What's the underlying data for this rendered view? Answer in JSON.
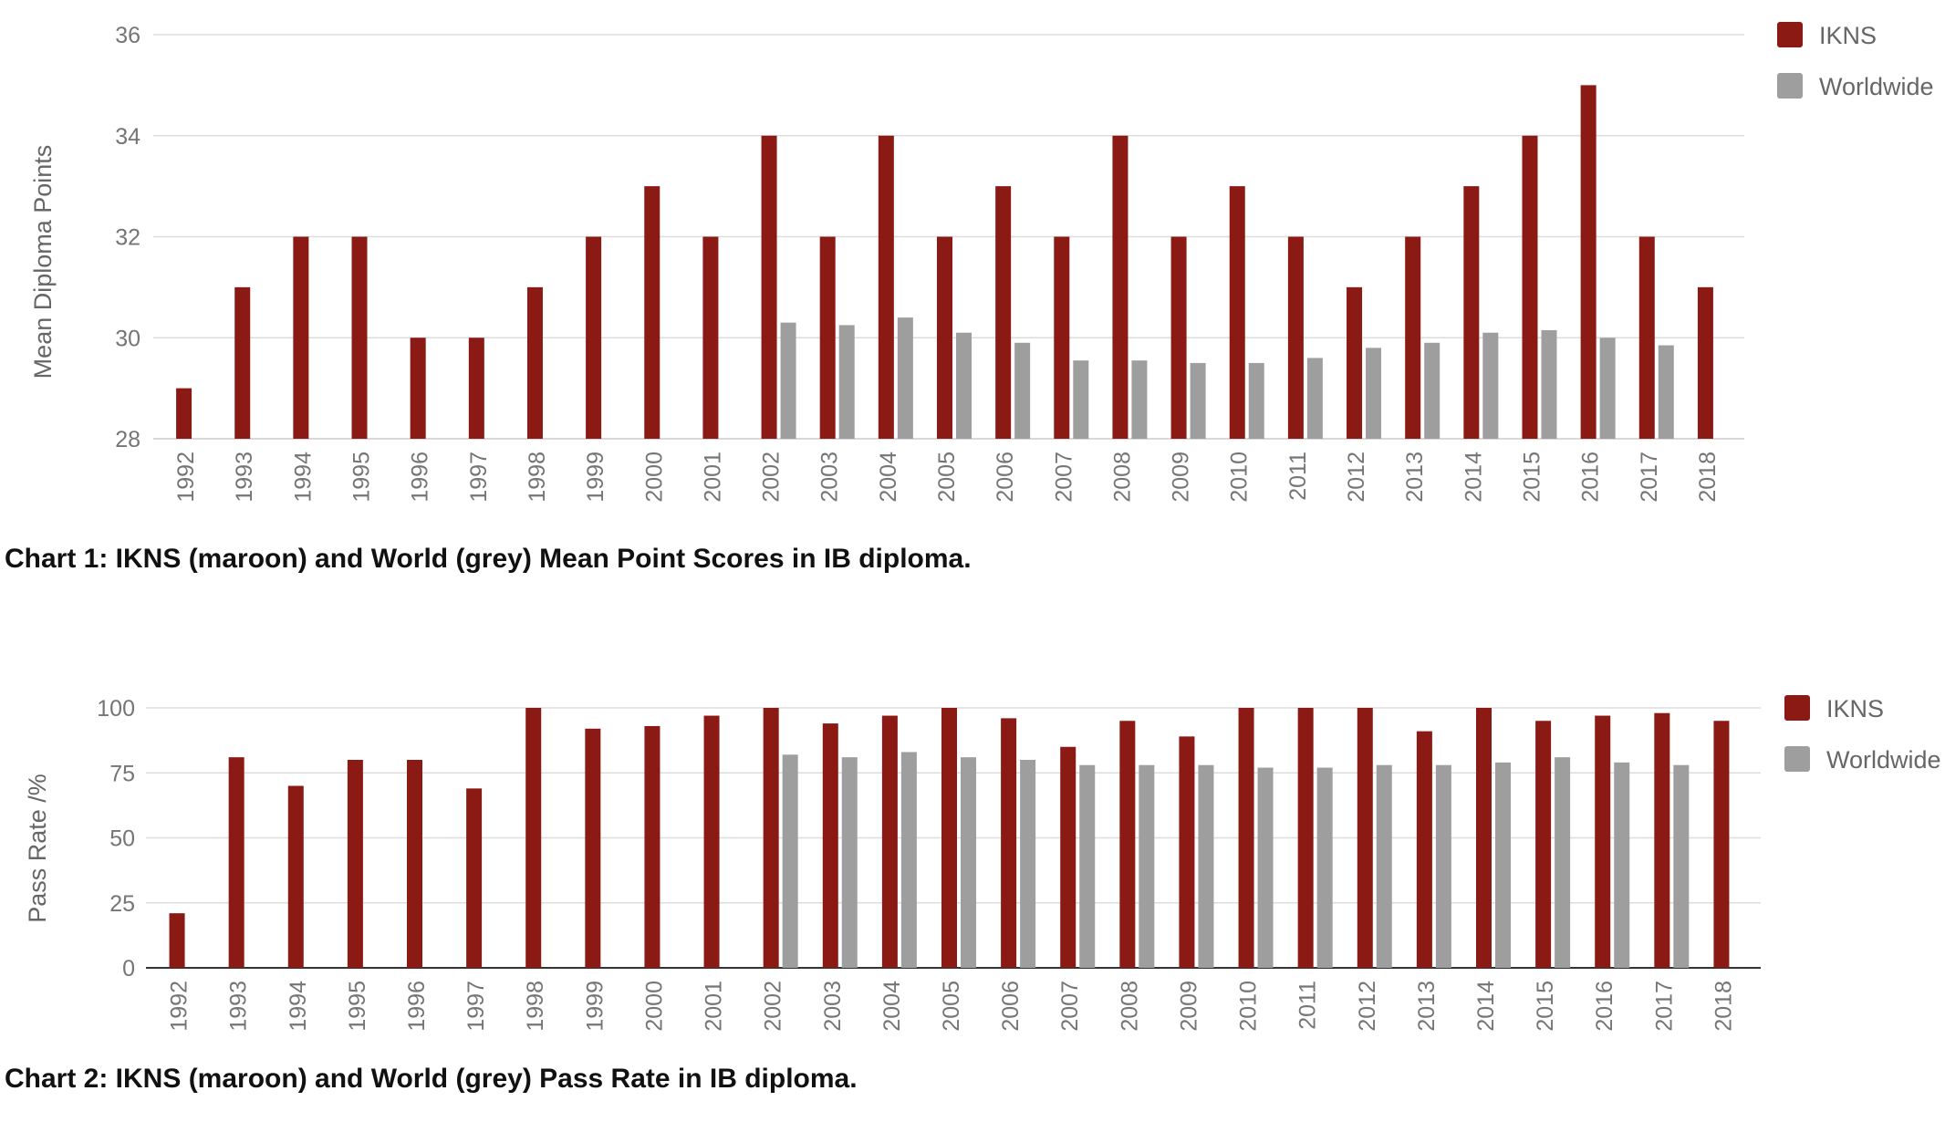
{
  "chart_data": [
    {
      "type": "bar",
      "title": "",
      "caption": "Chart 1:  IKNS (maroon) and World (grey) Mean Point Scores in IB diploma.",
      "xlabel": "",
      "ylabel": "Mean Diploma Points",
      "ylim": [
        28,
        36
      ],
      "yticks": [
        "28",
        "30",
        "32",
        "34",
        "36"
      ],
      "grid": true,
      "legend": "top-right",
      "categories": [
        "1992",
        "1993",
        "1994",
        "1995",
        "1996",
        "1997",
        "1998",
        "1999",
        "2000",
        "2001",
        "2002",
        "2003",
        "2004",
        "2005",
        "2006",
        "2007",
        "2008",
        "2009",
        "2010",
        "2011",
        "2012",
        "2013",
        "2014",
        "2015",
        "2016",
        "2017",
        "2018"
      ],
      "series": [
        {
          "name": "IKNS",
          "color": "#8b1a14",
          "values": [
            29,
            31,
            32,
            32,
            30,
            30,
            31,
            32,
            33,
            32,
            34,
            32,
            34,
            32,
            33,
            32,
            34,
            32,
            33,
            32,
            31,
            32,
            33,
            34,
            35,
            32,
            31
          ]
        },
        {
          "name": "Worldwide",
          "color": "#9e9e9e",
          "values": [
            null,
            null,
            null,
            null,
            null,
            null,
            null,
            null,
            null,
            null,
            30.3,
            30.25,
            30.4,
            30.1,
            29.9,
            29.55,
            29.55,
            29.5,
            29.5,
            29.6,
            29.8,
            29.9,
            30.1,
            30.15,
            30.0,
            29.85,
            null
          ]
        }
      ]
    },
    {
      "type": "bar",
      "title": "",
      "caption": "Chart 2:  IKNS (maroon) and World (grey) Pass Rate in IB diploma.",
      "xlabel": "",
      "ylabel": "Pass Rate /%",
      "ylim": [
        0,
        100
      ],
      "yticks": [
        "0",
        "25",
        "50",
        "75",
        "100"
      ],
      "grid": true,
      "legend": "top-right",
      "categories": [
        "1992",
        "1993",
        "1994",
        "1995",
        "1996",
        "1997",
        "1998",
        "1999",
        "2000",
        "2001",
        "2002",
        "2003",
        "2004",
        "2005",
        "2006",
        "2007",
        "2008",
        "2009",
        "2010",
        "2011",
        "2012",
        "2013",
        "2014",
        "2015",
        "2016",
        "2017",
        "2018"
      ],
      "series": [
        {
          "name": "IKNS",
          "color": "#8b1a14",
          "values": [
            21,
            81,
            70,
            80,
            80,
            69,
            100,
            92,
            93,
            97,
            100,
            94,
            97,
            100,
            96,
            85,
            95,
            89,
            100,
            100,
            100,
            91,
            100,
            95,
            97,
            98,
            95
          ]
        },
        {
          "name": "Worldwide",
          "color": "#9e9e9e",
          "values": [
            null,
            null,
            null,
            null,
            null,
            null,
            null,
            null,
            null,
            null,
            82,
            81,
            83,
            81,
            80,
            78,
            78,
            78,
            77,
            77,
            78,
            78,
            79,
            81,
            79,
            78,
            null
          ]
        }
      ]
    }
  ]
}
